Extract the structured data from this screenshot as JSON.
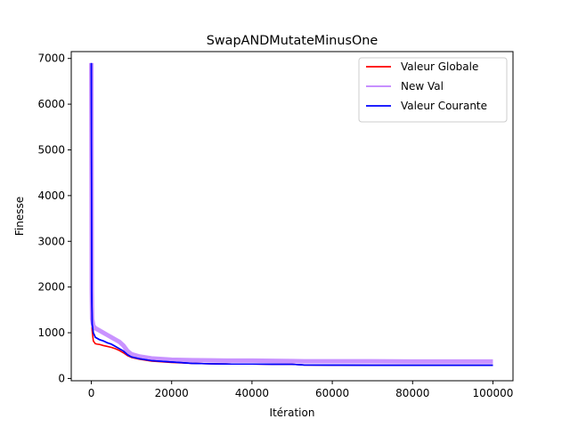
{
  "chart_data": {
    "type": "line",
    "title": "SwapANDMutateMinusOne",
    "xlabel": "Itération",
    "ylabel": "Finesse",
    "xlim": [
      -5000,
      105000
    ],
    "ylim": [
      -50,
      7150
    ],
    "xticks": [
      0,
      20000,
      40000,
      60000,
      80000,
      100000
    ],
    "xtick_labels": [
      "0",
      "20000",
      "40000",
      "60000",
      "80000",
      "100000"
    ],
    "yticks": [
      0,
      1000,
      2000,
      3000,
      4000,
      5000,
      6000,
      7000
    ],
    "ytick_labels": [
      "0",
      "1000",
      "2000",
      "3000",
      "4000",
      "5000",
      "6000",
      "7000"
    ],
    "grid": false,
    "legend_position": "upper-right",
    "series": [
      {
        "name": "Valeur Globale",
        "color": "#ff0000",
        "x": [
          0,
          100,
          200,
          500,
          1000,
          1500,
          2000,
          3000,
          4000,
          5000,
          6000,
          7000,
          8000,
          9000,
          10000,
          12000,
          15000,
          20000,
          25000,
          30000,
          35000,
          40000,
          45000,
          50000,
          53000,
          60000,
          70000,
          80000,
          90000,
          100000
        ],
        "values": [
          6850,
          1500,
          1050,
          820,
          760,
          750,
          745,
          720,
          700,
          680,
          650,
          610,
          560,
          500,
          460,
          420,
          380,
          350,
          330,
          320,
          315,
          315,
          312,
          310,
          295,
          292,
          290,
          290,
          290,
          290
        ]
      },
      {
        "name": "New Val",
        "color": "#bf80ff",
        "x": [
          0,
          100,
          200,
          500,
          1000,
          2000,
          3000,
          4000,
          5000,
          6000,
          7000,
          8000,
          9000,
          10000,
          12000,
          15000,
          20000,
          25000,
          30000,
          35000,
          40000,
          45000,
          50000,
          53000,
          60000,
          70000,
          80000,
          90000,
          100000
        ],
        "values": [
          6900,
          1950,
          1300,
          1150,
          1100,
          1050,
          1000,
          950,
          900,
          850,
          800,
          720,
          600,
          530,
          480,
          440,
          410,
          400,
          395,
          390,
          390,
          385,
          380,
          375,
          375,
          375,
          370,
          370,
          370
        ]
      },
      {
        "name": "Valeur Courante",
        "color": "#0000ff",
        "x": [
          0,
          100,
          200,
          500,
          1000,
          2000,
          3000,
          4000,
          5000,
          6000,
          7000,
          8000,
          9000,
          10000,
          12000,
          15000,
          20000,
          25000,
          30000,
          35000,
          40000,
          45000,
          50000,
          53000,
          60000,
          70000,
          80000,
          90000,
          100000
        ],
        "values": [
          6900,
          1900,
          1200,
          1000,
          900,
          850,
          820,
          780,
          750,
          700,
          650,
          600,
          520,
          470,
          430,
          390,
          360,
          330,
          320,
          315,
          315,
          312,
          310,
          295,
          292,
          290,
          290,
          290,
          290
        ]
      }
    ]
  }
}
